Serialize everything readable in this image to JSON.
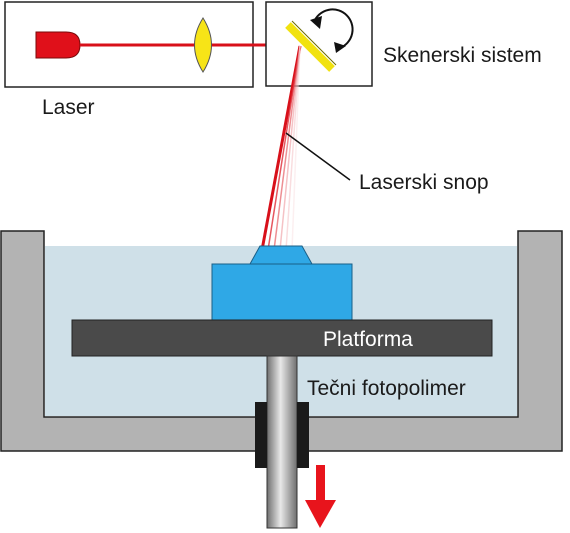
{
  "labels": {
    "laser": "Laser",
    "scanner_system": "Skenerski sistem",
    "laser_beam": "Laserski snop",
    "platform": "Platforma",
    "liquid_photopolymer": "Tečni fotopolimer"
  },
  "colors": {
    "laser_body": "#e0101a",
    "laser_beam": "#d8101a",
    "lens": "#f7e417",
    "mirror": "#f1e20f",
    "liquid": "#cfe0e8",
    "tank": "#b3b3b3",
    "platform": "#4a4a4a",
    "part": "#2fa8e6",
    "shaft": "#8a8a8a",
    "clamp": "#1a1a1a",
    "arrow": "#e8141c"
  },
  "icons": {
    "rotation": "rotation-arrow-icon",
    "direction": "down-arrow-icon"
  }
}
